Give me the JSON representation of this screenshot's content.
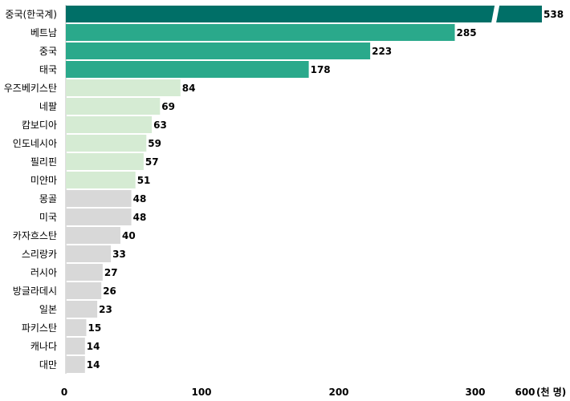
{
  "chart_data": {
    "type": "bar",
    "orientation": "horizontal",
    "categories": [
      "중국(한국계)",
      "베트남",
      "중국",
      "태국",
      "우즈베키스탄",
      "네팔",
      "캄보디아",
      "인도네시아",
      "필리핀",
      "미얀마",
      "몽골",
      "미국",
      "카자흐스탄",
      "스리랑카",
      "러시아",
      "방글라데시",
      "일본",
      "파키스탄",
      "캐나다",
      "대만"
    ],
    "values": [
      538,
      285,
      223,
      178,
      84,
      69,
      63,
      59,
      57,
      51,
      48,
      48,
      40,
      33,
      27,
      26,
      23,
      15,
      14,
      14
    ],
    "value_labels": [
      "538",
      "285",
      "223",
      "178",
      "84",
      "69",
      "63",
      "59",
      "57",
      "51",
      "48",
      "48",
      "40",
      "33",
      "27",
      "26",
      "23",
      "15",
      "14",
      "14"
    ],
    "bar_colors": [
      "#006f67",
      "#2aa98b",
      "#2aa98b",
      "#2aa98b",
      "#d5ebd3",
      "#d5ebd3",
      "#d5ebd3",
      "#d5ebd3",
      "#d5ebd3",
      "#d5ebd3",
      "#d8d8d8",
      "#d8d8d8",
      "#d8d8d8",
      "#d8d8d8",
      "#d8d8d8",
      "#d8d8d8",
      "#d8d8d8",
      "#d8d8d8",
      "#d8d8d8",
      "#d8d8d8"
    ],
    "x_ticks": [
      0,
      100,
      200,
      300,
      600
    ],
    "x_tick_labels": [
      "0",
      "100",
      "200",
      "300",
      "600"
    ],
    "x_unit": "(천 명)",
    "axis_break": true,
    "xlim": [
      0,
      600
    ],
    "grid": false,
    "legend": "none"
  }
}
